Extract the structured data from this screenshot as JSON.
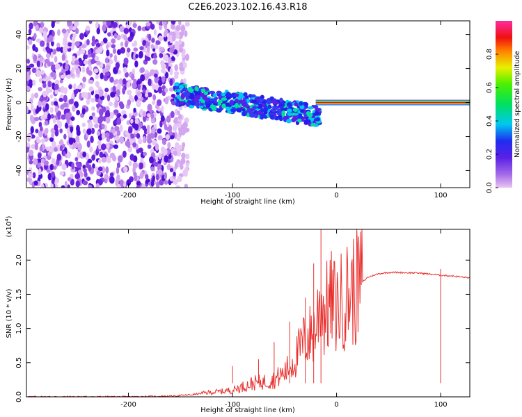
{
  "figure": {
    "title": "C2E6.2023.102.16.43.R18"
  },
  "chart_data": [
    {
      "type": "heatmap",
      "xlabel": "Height of straight line (km)",
      "ylabel": "Frequency (Hz)",
      "xlim": [
        -298,
        128
      ],
      "ylim": [
        -50,
        48
      ],
      "xticks": [
        -200,
        -100,
        0,
        100
      ],
      "yticks": [
        -40,
        -20,
        0,
        20,
        40
      ],
      "colorbar": {
        "label": "Normalized spectral amplitude",
        "range": [
          0,
          1
        ],
        "ticks": [
          0.0,
          0.2,
          0.4,
          0.6,
          0.8
        ]
      },
      "regions": [
        {
          "x_range": [
            -298,
            -155
          ],
          "freq_range": [
            -50,
            48
          ],
          "amplitude": 0.1,
          "pattern": "scattered noise"
        },
        {
          "x_range": [
            -155,
            -15
          ],
          "freq_center": [
            5,
            -8
          ],
          "amplitude": 0.4,
          "pattern": "descending band"
        },
        {
          "x_range": [
            -20,
            128
          ],
          "freq_center": 0,
          "amplitude": 1.0,
          "pattern": "steady line"
        }
      ]
    },
    {
      "type": "line",
      "xlabel": "Height of straight line (km)",
      "ylabel": "SNR (10 * v/v)",
      "y_multiplier": "(x10",
      "y_multiplier_exp": "4",
      "y_multiplier_close": ")",
      "xlim": [
        -298,
        128
      ],
      "ylim": [
        0,
        2.45
      ],
      "xticks": [
        -200,
        -100,
        0,
        100
      ],
      "yticks": [
        0.0,
        0.5,
        1.0,
        1.5,
        2.0
      ],
      "color": "#e8302e",
      "series": [
        {
          "x": [
            -298,
            -250,
            -200,
            -160,
            -140,
            -125,
            -110,
            -100,
            -90,
            -80,
            -70,
            -60,
            -50,
            -45,
            -40,
            -35,
            -30,
            -25,
            -20,
            -17,
            -15,
            -12,
            -10,
            -8,
            -5,
            0,
            5,
            10,
            15,
            20,
            25,
            30,
            40,
            50,
            60,
            80,
            100,
            110,
            128
          ],
          "y": [
            0.0,
            0.0,
            0.0,
            0.01,
            0.03,
            0.06,
            0.08,
            0.1,
            0.15,
            0.2,
            0.22,
            0.25,
            0.35,
            0.45,
            0.55,
            0.7,
            0.85,
            0.9,
            1.0,
            1.3,
            1.5,
            1.2,
            1.3,
            1.3,
            1.4,
            1.3,
            1.4,
            1.5,
            1.55,
            1.6,
            1.68,
            1.75,
            1.8,
            1.82,
            1.82,
            1.81,
            1.78,
            1.77,
            1.74
          ]
        }
      ],
      "spikes": [
        {
          "x": -15,
          "y": 2.45
        },
        {
          "x": -22,
          "y": 1.95
        },
        {
          "x": -30,
          "y": 1.45
        },
        {
          "x": -45,
          "y": 1.1
        },
        {
          "x": -60,
          "y": 0.8
        },
        {
          "x": -75,
          "y": 0.55
        },
        {
          "x": -100,
          "y": 0.45
        },
        {
          "x": 100,
          "y": 1.87
        }
      ]
    }
  ]
}
